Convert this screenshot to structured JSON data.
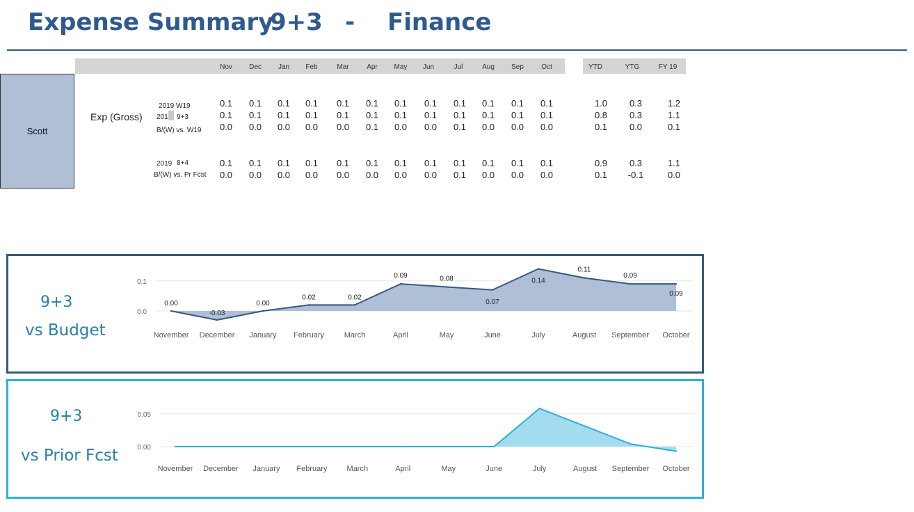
{
  "header": {
    "title": "Expense Summary",
    "version": "9+3",
    "dash": "-",
    "department": "Finance"
  },
  "table": {
    "person": "Scott",
    "metric": "Exp (Gross)",
    "months": [
      "Nov",
      "Dec",
      "Jan",
      "Feb",
      "Mar",
      "Apr",
      "May",
      "Jun",
      "Jul",
      "Aug",
      "Sep",
      "Oct"
    ],
    "totals_headers": [
      "YTD",
      "YTG",
      "FY 19"
    ],
    "rows": [
      {
        "label_a": "2019 W19",
        "label_b": "",
        "values": [
          "0.1",
          "0.1",
          "0.1",
          "0.1",
          "0.1",
          "0.1",
          "0.1",
          "0.1",
          "0.1",
          "0.1",
          "0.1",
          "0.1"
        ],
        "totals": [
          "1.0",
          "0.3",
          "1.2"
        ]
      },
      {
        "label_a": "201",
        "label_b": "9+3",
        "values": [
          "0.1",
          "0.1",
          "0.1",
          "0.1",
          "0.1",
          "0.1",
          "0.1",
          "0.1",
          "0.1",
          "0.1",
          "0.1",
          "0.1"
        ],
        "totals": [
          "0.8",
          "0.3",
          "1.1"
        ]
      },
      {
        "label_a": "B/(W) vs. W19",
        "label_b": "",
        "values": [
          "0.0",
          "0.0",
          "0.0",
          "0.0",
          "0.0",
          "0.1",
          "0.0",
          "0.0",
          "0.1",
          "0.0",
          "0.0",
          "0.0"
        ],
        "totals": [
          "0.1",
          "0.0",
          "0.1"
        ]
      },
      {
        "label_a": "2019",
        "label_b": "8+4",
        "values": [
          "0.1",
          "0.1",
          "0.1",
          "0.1",
          "0.1",
          "0.1",
          "0.1",
          "0.1",
          "0.1",
          "0.1",
          "0.1",
          "0.1"
        ],
        "totals": [
          "0.9",
          "0.3",
          "1.1"
        ]
      },
      {
        "label_a": "B/(W) vs. Pr Fcst",
        "label_b": "",
        "values": [
          "0.0",
          "0.0",
          "0.0",
          "0.0",
          "0.0",
          "0.0",
          "0.0",
          "0.0",
          "0.1",
          "0.0",
          "0.0",
          "0.0"
        ],
        "totals": [
          "0.1",
          "-0.1",
          "0.0"
        ]
      }
    ]
  },
  "panels": {
    "budget": {
      "line1": "9+3",
      "line2": "vs Budget"
    },
    "prior": {
      "line1": "9+3",
      "line2": "vs Prior Fcst"
    }
  },
  "colors": {
    "title": "#2f5a8f",
    "budget_line": "#35597f",
    "budget_fill": "#aebfd6",
    "prior_line": "#2eb0d9",
    "prior_fill": "#a4dcef"
  },
  "chart_data": [
    {
      "type": "area",
      "categories": [
        "November",
        "December",
        "January",
        "February",
        "March",
        "April",
        "May",
        "June",
        "July",
        "August",
        "September",
        "October"
      ],
      "values": [
        0.0,
        -0.03,
        0.0,
        0.02,
        0.02,
        0.09,
        0.08,
        0.07,
        0.14,
        0.11,
        0.09,
        0.09
      ],
      "data_labels": [
        "0.00",
        "-0.03",
        "0.00",
        "0.02",
        "0.02",
        "0.09",
        "0.08",
        "0.07",
        "0.14",
        "0.11",
        "0.09",
        "0.09"
      ],
      "yticks": [
        "0.1",
        "0.0"
      ],
      "ylim": [
        -0.04,
        0.15
      ],
      "grid": true
    },
    {
      "type": "area",
      "categories": [
        "November",
        "December",
        "January",
        "February",
        "March",
        "April",
        "May",
        "June",
        "July",
        "August",
        "September",
        "October"
      ],
      "values": [
        0.0,
        0.0,
        0.0,
        0.0,
        0.0,
        0.0,
        0.0,
        0.0,
        0.058,
        0.031,
        0.004,
        -0.007
      ],
      "yticks": [
        "0.05",
        "0.00"
      ],
      "ylim": [
        -0.01,
        0.065
      ],
      "grid": true
    }
  ]
}
